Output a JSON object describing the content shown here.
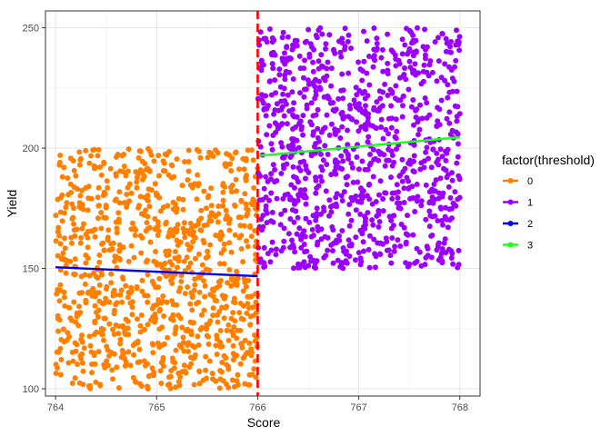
{
  "chart_data": {
    "type": "scatter",
    "xlabel": "Score",
    "ylabel": "Yield",
    "xlim": [
      763.9,
      768.2
    ],
    "ylim": [
      97,
      257
    ],
    "x_ticks": [
      764,
      765,
      766,
      767,
      768
    ],
    "y_ticks": [
      100,
      150,
      200,
      250
    ],
    "grid": true,
    "cutoff": 766,
    "legend": {
      "title": "factor(threshold)",
      "position": "right",
      "entries": [
        {
          "label": "0",
          "color": "#ff7f00"
        },
        {
          "label": "1",
          "color": "#9b00ff"
        },
        {
          "label": "2",
          "color": "#0000ff"
        },
        {
          "label": "3",
          "color": "#19ff19"
        }
      ]
    },
    "point_groups": [
      {
        "name": "0",
        "color": "#ff7f00",
        "x_range": [
          764,
          766
        ],
        "y_range": [
          100,
          200
        ],
        "count": 1000
      },
      {
        "name": "1",
        "color": "#9b00ff",
        "x_range": [
          766,
          768
        ],
        "y_range": [
          150,
          250
        ],
        "count": 1000
      }
    ],
    "fit_lines": [
      {
        "name": "2",
        "color": "#0000ff",
        "x": [
          764,
          766
        ],
        "y": [
          150.5,
          146.8
        ]
      },
      {
        "name": "3",
        "color": "#19ff19",
        "x": [
          766,
          768
        ],
        "y": [
          196.8,
          204.5
        ]
      }
    ]
  }
}
